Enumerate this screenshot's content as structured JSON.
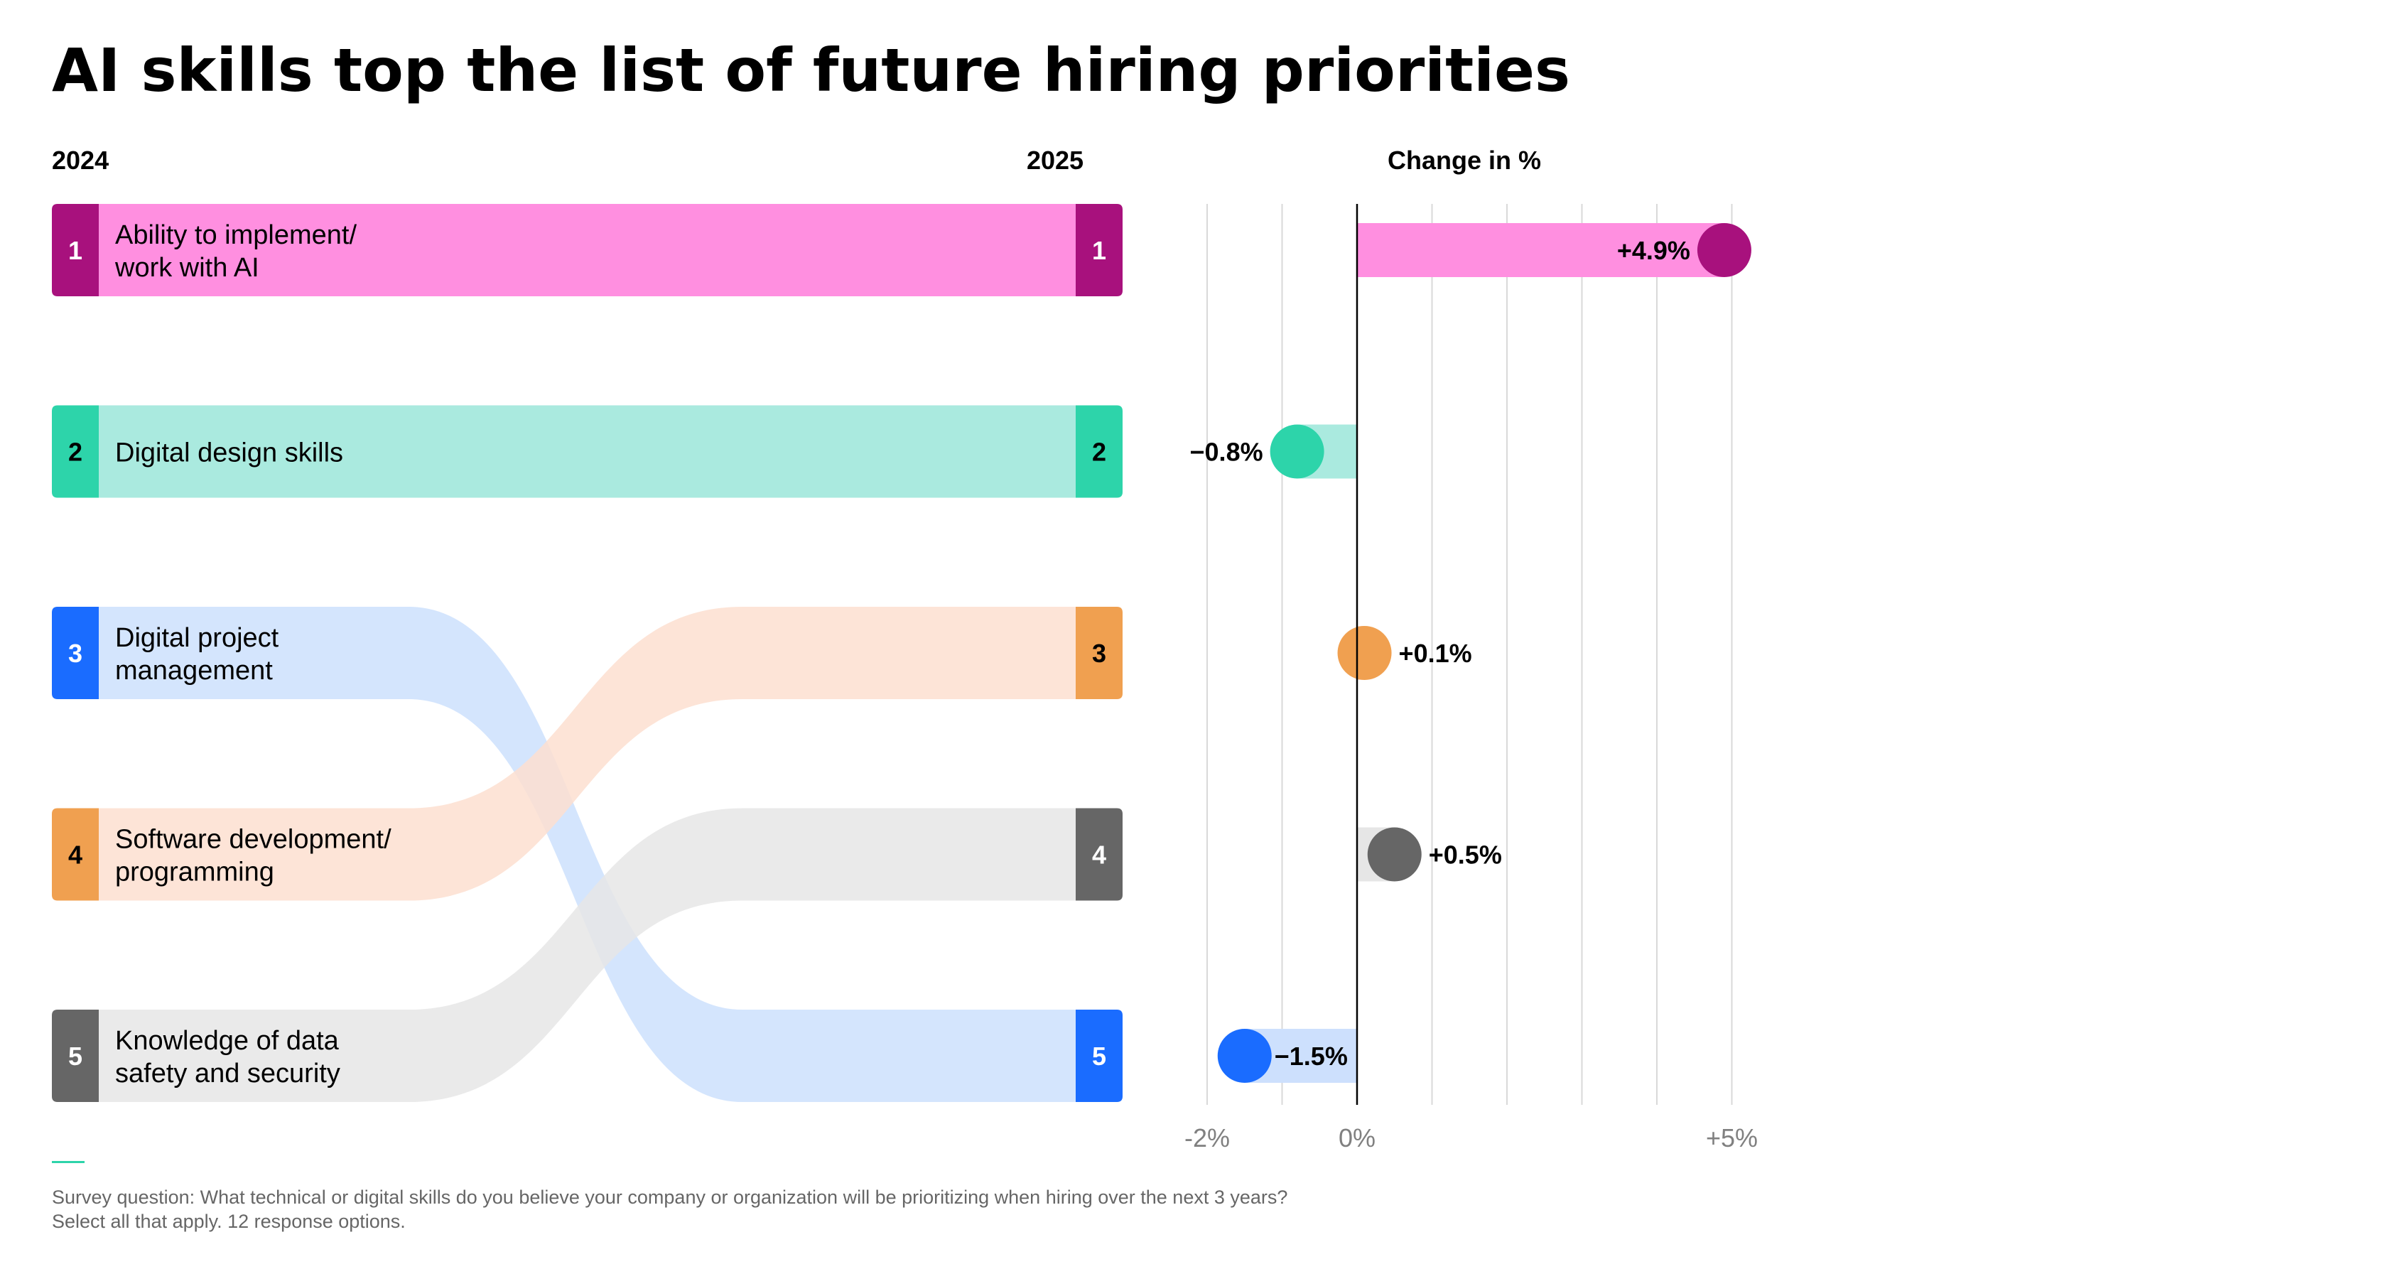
{
  "title": "AI skills top the list of future hiring priorities",
  "headers": {
    "left": "2024",
    "right": "2025",
    "change": "Change in %"
  },
  "chart_data": [
    {
      "type": "bump",
      "from_label": "2024",
      "to_label": "2025",
      "items": [
        {
          "name": "Ability to implement/ work with AI",
          "lines": [
            "Ability to implement/",
            "work with AI"
          ],
          "rank_2024": 1,
          "rank_2025": 1,
          "color": "#ff8fe0",
          "dark": "#a8117d"
        },
        {
          "name": "Digital design skills",
          "lines": [
            "Digital design skills"
          ],
          "rank_2024": 2,
          "rank_2025": 2,
          "color": "#aaeadf",
          "dark": "#2dd4aa"
        },
        {
          "name": "Digital project management",
          "lines": [
            "Digital project",
            "management"
          ],
          "rank_2024": 3,
          "rank_2025": 5,
          "color": "#cde0fd",
          "dark": "#1a6cff"
        },
        {
          "name": "Software development/ programming",
          "lines": [
            "Software development/",
            "programming"
          ],
          "rank_2024": 4,
          "rank_2025": 3,
          "color": "#fddfd0",
          "dark": "#f0a050"
        },
        {
          "name": "Knowledge of data safety and security",
          "lines": [
            "Knowledge of data",
            "safety and security"
          ],
          "rank_2024": 5,
          "rank_2025": 4,
          "color": "#e6e6e6",
          "dark": "#666666"
        }
      ]
    },
    {
      "type": "bar",
      "xlabel": "Change in %",
      "xlim": [
        -2,
        5
      ],
      "ticks": [
        "-2%",
        "0%",
        "+5%"
      ],
      "tick_values": [
        -2,
        0,
        5
      ],
      "categories": [
        "Ability to implement/ work with AI",
        "Digital design skills",
        "Software development/ programming",
        "Knowledge of data safety and security",
        "Digital project management"
      ],
      "values": [
        4.9,
        -0.8,
        0.1,
        0.5,
        -1.5
      ],
      "labels": [
        "+4.9%",
        "−0.8%",
        "+0.1%",
        "+0.5%",
        "−1.5%"
      ],
      "colors": [
        "#a8117d",
        "#2dd4aa",
        "#f0a050",
        "#666666",
        "#1a6cff"
      ],
      "bar_colors": [
        "#ff8fe0",
        "#aaeadf",
        "#fddfd0",
        "#e6e6e6",
        "#cde0fd"
      ]
    }
  ],
  "footnote": [
    "Survey question: What technical or digital skills do you believe your company or organization will be prioritizing when hiring over the next 3 years?",
    "Select all that apply. 12 response options."
  ]
}
